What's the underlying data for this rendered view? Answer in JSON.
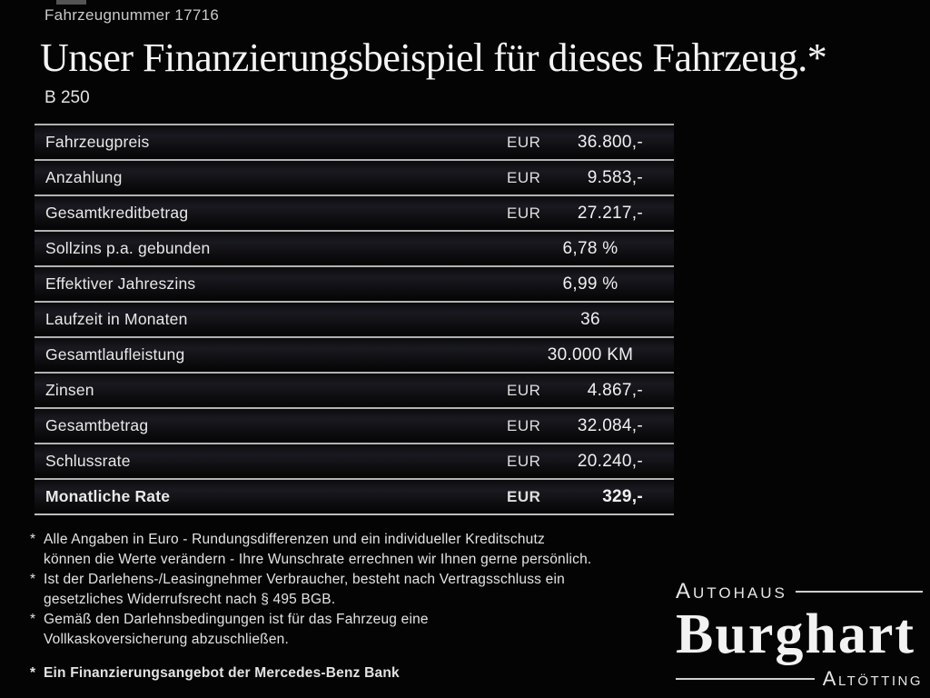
{
  "colors": {
    "background": "#040405",
    "text": "#e8e8e8",
    "separator_line": "#b2b2b2"
  },
  "header": {
    "vehicle_number": "Fahrzeugnummer 17716",
    "title": "Unser Finanzierungsbeispiel für dieses Fahrzeug.*",
    "model": "B 250"
  },
  "finance_table": {
    "rows": [
      {
        "label": "Fahrzeugpreis",
        "currency": "EUR",
        "value": "36.800,-"
      },
      {
        "label": "Anzahlung",
        "currency": "EUR",
        "value": "9.583,-"
      },
      {
        "label": "Gesamtkreditbetrag",
        "currency": "EUR",
        "value": "27.217,-"
      },
      {
        "label": "Sollzins p.a. gebunden",
        "currency": "",
        "value": "6,78 %"
      },
      {
        "label": "Effektiver Jahreszins",
        "currency": "",
        "value": "6,99 %"
      },
      {
        "label": "Laufzeit in Monaten",
        "currency": "",
        "value": "36"
      },
      {
        "label": "Gesamtlaufleistung",
        "currency": "",
        "value": "30.000 KM"
      },
      {
        "label": "Zinsen",
        "currency": "EUR",
        "value": "4.867,-"
      },
      {
        "label": "Gesamtbetrag",
        "currency": "EUR",
        "value": "32.084,-"
      },
      {
        "label": "Schlussrate",
        "currency": "EUR",
        "value": "20.240,-"
      },
      {
        "label": "Monatliche Rate",
        "currency": "EUR",
        "value": "329,-"
      }
    ]
  },
  "footnotes": {
    "marker": "*",
    "items": [
      {
        "line1": "Alle Angaben in Euro - Rundungsdifferenzen und ein individueller Kreditschutz",
        "line2": "können die Werte verändern - Ihre Wunschrate errechnen wir Ihnen gerne persönlich."
      },
      {
        "line1": "Ist der Darlehens-/Leasingnehmer Verbraucher, besteht nach Vertragsschluss ein",
        "line2": "gesetzliches Widerrufsrecht nach § 495 BGB."
      },
      {
        "line1": "Gemäß den Darlehnsbedingungen ist für das Fahrzeug eine",
        "line2": "Vollkaskoversicherung abzuschließen."
      }
    ],
    "bank_note": "Ein Finanzierungsangebot der Mercedes-Benz Bank"
  },
  "dealer_logo": {
    "top_label": "Autohaus",
    "name": "Burghart",
    "bottom_label": "Altötting"
  }
}
